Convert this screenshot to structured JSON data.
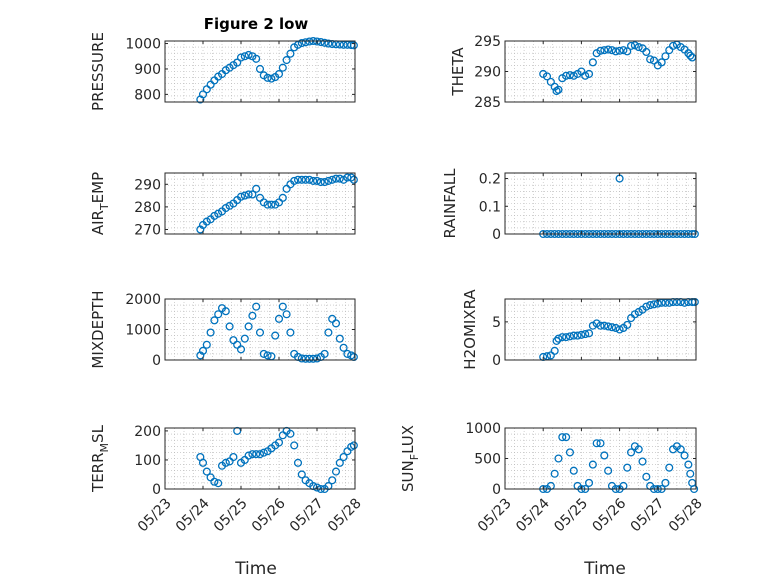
{
  "figure": {
    "title": "Figure 2 low",
    "xlabel": "Time"
  },
  "style": {
    "marker_color": "#0072bd",
    "axis_color": "#262626",
    "grid_color": "#b4b4b4"
  },
  "chart_data": [
    {
      "id": "pressure",
      "type": "scatter",
      "title": "Figure 2 low",
      "ylabel": "PRESSURE",
      "ylabel_sub": "",
      "xlim": [
        0,
        5
      ],
      "ylim": [
        770,
        1010
      ],
      "yticks": [
        800,
        900,
        1000
      ],
      "ytick_labels": [
        "800",
        "900",
        "1000"
      ],
      "xticks": [
        0,
        1,
        2,
        3,
        4,
        5
      ],
      "xtick_labels": [
        "05/23",
        "05/24",
        "05/25",
        "05/26",
        "05/27",
        "05/28"
      ],
      "show_xticklabels": false,
      "x": [
        0.93,
        1.0,
        1.1,
        1.2,
        1.3,
        1.4,
        1.5,
        1.6,
        1.7,
        1.8,
        1.9,
        2.0,
        2.1,
        2.2,
        2.3,
        2.4,
        2.5,
        2.6,
        2.7,
        2.8,
        2.9,
        3.0,
        3.1,
        3.2,
        3.3,
        3.4,
        3.5,
        3.6,
        3.7,
        3.8,
        3.9,
        4.0,
        4.1,
        4.2,
        4.3,
        4.4,
        4.5,
        4.6,
        4.7,
        4.8,
        4.9,
        4.97
      ],
      "y": [
        780,
        800,
        820,
        838,
        855,
        870,
        880,
        895,
        905,
        915,
        925,
        945,
        950,
        955,
        950,
        940,
        900,
        875,
        865,
        862,
        868,
        880,
        905,
        935,
        960,
        985,
        995,
        1002,
        1005,
        1008,
        1010,
        1008,
        1006,
        1003,
        1000,
        998,
        997,
        996,
        995,
        995,
        994,
        993
      ]
    },
    {
      "id": "theta",
      "type": "scatter",
      "title": "",
      "ylabel": "THETA",
      "ylabel_sub": "",
      "xlim": [
        0,
        5
      ],
      "ylim": [
        285,
        295
      ],
      "yticks": [
        285,
        290,
        295
      ],
      "ytick_labels": [
        "285",
        "290",
        "295"
      ],
      "xticks": [
        0,
        1,
        2,
        3,
        4,
        5
      ],
      "xtick_labels": [
        "05/23",
        "05/24",
        "05/25",
        "05/26",
        "05/27",
        "05/28"
      ],
      "show_xticklabels": false,
      "x": [
        1.0,
        1.1,
        1.2,
        1.3,
        1.35,
        1.4,
        1.5,
        1.6,
        1.7,
        1.8,
        1.9,
        2.0,
        2.1,
        2.2,
        2.3,
        2.4,
        2.5,
        2.6,
        2.7,
        2.8,
        2.9,
        3.0,
        3.1,
        3.2,
        3.3,
        3.4,
        3.5,
        3.6,
        3.7,
        3.8,
        3.9,
        4.0,
        4.1,
        4.2,
        4.3,
        4.4,
        4.5,
        4.6,
        4.7,
        4.8,
        4.85,
        4.9
      ],
      "y": [
        289.6,
        289.2,
        288.3,
        287.5,
        286.8,
        287.0,
        288.9,
        289.3,
        289.4,
        289.3,
        289.6,
        290.0,
        289.3,
        289.6,
        291.5,
        293.0,
        293.4,
        293.5,
        293.6,
        293.5,
        293.3,
        293.4,
        293.5,
        293.3,
        294.2,
        294.3,
        294.0,
        293.8,
        293.2,
        292.0,
        291.8,
        291.0,
        291.5,
        292.5,
        293.5,
        294.2,
        294.4,
        294.0,
        293.6,
        293.0,
        292.6,
        292.3
      ]
    },
    {
      "id": "air_temp",
      "type": "scatter",
      "title": "",
      "ylabel": "AIR",
      "ylabel_sub": "T",
      "ylabel_rest": "EMP",
      "xlim": [
        0,
        5
      ],
      "ylim": [
        268,
        295
      ],
      "yticks": [
        270,
        280,
        290
      ],
      "ytick_labels": [
        "270",
        "280",
        "290"
      ],
      "xticks": [
        0,
        1,
        2,
        3,
        4,
        5
      ],
      "xtick_labels": [
        "05/23",
        "05/24",
        "05/25",
        "05/26",
        "05/27",
        "05/28"
      ],
      "show_xticklabels": false,
      "x": [
        0.93,
        1.0,
        1.1,
        1.2,
        1.3,
        1.4,
        1.5,
        1.6,
        1.7,
        1.8,
        1.9,
        2.0,
        2.1,
        2.2,
        2.3,
        2.4,
        2.5,
        2.6,
        2.7,
        2.8,
        2.9,
        3.0,
        3.1,
        3.2,
        3.3,
        3.4,
        3.5,
        3.6,
        3.7,
        3.8,
        3.9,
        4.0,
        4.1,
        4.2,
        4.3,
        4.4,
        4.5,
        4.6,
        4.7,
        4.8,
        4.9,
        4.97
      ],
      "y": [
        270,
        272,
        273.5,
        274.5,
        276,
        277,
        278,
        279.5,
        280.5,
        281.5,
        283,
        284.5,
        285,
        285.5,
        285.5,
        288,
        284,
        282,
        281,
        281,
        281,
        282,
        284,
        288,
        290,
        291.5,
        292,
        292,
        292,
        292,
        291.5,
        291.5,
        291,
        291,
        291.5,
        292,
        292.5,
        292.5,
        292,
        293,
        293,
        292
      ]
    },
    {
      "id": "rainfall",
      "type": "scatter",
      "title": "",
      "ylabel": "RAINFALL",
      "ylabel_sub": "",
      "xlim": [
        0,
        5
      ],
      "ylim": [
        0,
        0.22
      ],
      "yticks": [
        0,
        0.1,
        0.2
      ],
      "ytick_labels": [
        "0",
        "0.1",
        "0.2"
      ],
      "xticks": [
        0,
        1,
        2,
        3,
        4,
        5
      ],
      "xtick_labels": [
        "05/23",
        "05/24",
        "05/25",
        "05/26",
        "05/27",
        "05/28"
      ],
      "show_xticklabels": false,
      "x": [
        1.0,
        1.1,
        1.2,
        1.3,
        1.4,
        1.5,
        1.6,
        1.7,
        1.8,
        1.9,
        2.0,
        2.1,
        2.2,
        2.3,
        2.4,
        2.5,
        2.6,
        2.7,
        2.8,
        2.9,
        3.0,
        3.1,
        3.2,
        3.3,
        3.4,
        3.5,
        3.6,
        3.7,
        3.8,
        3.9,
        4.0,
        4.1,
        4.2,
        4.3,
        4.4,
        4.5,
        4.6,
        4.7,
        4.8,
        4.9,
        4.97,
        3.0
      ],
      "y": [
        0,
        0,
        0,
        0,
        0,
        0,
        0,
        0,
        0,
        0,
        0,
        0,
        0,
        0,
        0,
        0,
        0,
        0,
        0,
        0,
        0,
        0,
        0,
        0,
        0,
        0,
        0,
        0,
        0,
        0,
        0,
        0,
        0,
        0,
        0,
        0,
        0,
        0,
        0,
        0,
        0,
        0.2
      ]
    },
    {
      "id": "mixdepth",
      "type": "scatter",
      "title": "",
      "ylabel": "MIXDEPTH",
      "ylabel_sub": "",
      "xlim": [
        0,
        5
      ],
      "ylim": [
        0,
        2000
      ],
      "yticks": [
        0,
        1000,
        2000
      ],
      "ytick_labels": [
        "0",
        "1000",
        "2000"
      ],
      "xticks": [
        0,
        1,
        2,
        3,
        4,
        5
      ],
      "xtick_labels": [
        "05/23",
        "05/24",
        "05/25",
        "05/26",
        "05/27",
        "05/28"
      ],
      "show_xticklabels": false,
      "x": [
        0.93,
        1.0,
        1.1,
        1.2,
        1.3,
        1.4,
        1.5,
        1.6,
        1.7,
        1.8,
        1.9,
        2.0,
        2.1,
        2.2,
        2.3,
        2.4,
        2.5,
        2.6,
        2.7,
        2.8,
        2.9,
        3.0,
        3.1,
        3.2,
        3.3,
        3.4,
        3.5,
        3.6,
        3.7,
        3.8,
        3.9,
        4.0,
        4.1,
        4.2,
        4.3,
        4.4,
        4.5,
        4.6,
        4.7,
        4.8,
        4.9,
        4.97
      ],
      "y": [
        150,
        300,
        500,
        900,
        1300,
        1500,
        1700,
        1600,
        1100,
        650,
        500,
        350,
        700,
        1100,
        1450,
        1750,
        900,
        200,
        150,
        120,
        800,
        1350,
        1750,
        1500,
        900,
        200,
        100,
        50,
        40,
        40,
        40,
        50,
        100,
        200,
        900,
        1350,
        1200,
        700,
        400,
        200,
        150,
        100
      ]
    },
    {
      "id": "h2omixra",
      "type": "scatter",
      "title": "",
      "ylabel": "H2OMIXRA",
      "ylabel_sub": "",
      "xlim": [
        0,
        5
      ],
      "ylim": [
        0,
        8
      ],
      "yticks": [
        0,
        5
      ],
      "ytick_labels": [
        "0",
        "5"
      ],
      "xticks": [
        0,
        1,
        2,
        3,
        4,
        5
      ],
      "xtick_labels": [
        "05/23",
        "05/24",
        "05/25",
        "05/26",
        "05/27",
        "05/28"
      ],
      "show_xticklabels": false,
      "x": [
        1.0,
        1.1,
        1.2,
        1.3,
        1.35,
        1.4,
        1.5,
        1.6,
        1.7,
        1.8,
        1.9,
        2.0,
        2.1,
        2.2,
        2.3,
        2.4,
        2.5,
        2.6,
        2.7,
        2.8,
        2.9,
        3.0,
        3.1,
        3.2,
        3.3,
        3.4,
        3.5,
        3.6,
        3.7,
        3.8,
        3.9,
        4.0,
        4.1,
        4.2,
        4.3,
        4.4,
        4.5,
        4.6,
        4.7,
        4.8,
        4.9,
        4.97
      ],
      "y": [
        0.4,
        0.5,
        0.6,
        1.2,
        2.5,
        2.8,
        3.0,
        3.0,
        3.1,
        3.2,
        3.2,
        3.3,
        3.4,
        3.5,
        4.5,
        4.8,
        4.5,
        4.5,
        4.4,
        4.3,
        4.2,
        4.0,
        4.2,
        4.6,
        5.5,
        6.0,
        6.3,
        6.6,
        7.0,
        7.2,
        7.3,
        7.4,
        7.5,
        7.5,
        7.5,
        7.6,
        7.6,
        7.6,
        7.5,
        7.6,
        7.6,
        7.6
      ]
    },
    {
      "id": "terr_msl",
      "type": "scatter",
      "title": "",
      "ylabel": "TERR",
      "ylabel_sub": "M",
      "ylabel_rest": "SL",
      "xlim": [
        0,
        5
      ],
      "ylim": [
        0,
        210
      ],
      "yticks": [
        0,
        100,
        200
      ],
      "ytick_labels": [
        "0",
        "100",
        "200"
      ],
      "xticks": [
        0,
        1,
        2,
        3,
        4,
        5
      ],
      "xtick_labels": [
        "05/23",
        "05/24",
        "05/25",
        "05/26",
        "05/27",
        "05/28"
      ],
      "show_xticklabels": true,
      "x": [
        0.93,
        1.0,
        1.1,
        1.2,
        1.3,
        1.4,
        1.5,
        1.6,
        1.7,
        1.8,
        1.9,
        2.0,
        2.1,
        2.2,
        2.3,
        2.4,
        2.5,
        2.6,
        2.7,
        2.8,
        2.9,
        3.0,
        3.1,
        3.2,
        3.3,
        3.4,
        3.5,
        3.6,
        3.7,
        3.8,
        3.9,
        4.0,
        4.1,
        4.2,
        4.3,
        4.4,
        4.5,
        4.6,
        4.7,
        4.8,
        4.9,
        4.97
      ],
      "y": [
        110,
        90,
        60,
        40,
        25,
        20,
        80,
        90,
        95,
        110,
        200,
        90,
        100,
        115,
        120,
        120,
        120,
        125,
        130,
        140,
        150,
        160,
        185,
        200,
        190,
        150,
        90,
        50,
        30,
        20,
        10,
        5,
        0,
        0,
        10,
        30,
        60,
        90,
        110,
        130,
        145,
        150
      ]
    },
    {
      "id": "sun_flux",
      "type": "scatter",
      "title": "",
      "ylabel": "SUN",
      "ylabel_sub": "F",
      "ylabel_rest": "LUX",
      "xlim": [
        0,
        5
      ],
      "ylim": [
        0,
        1000
      ],
      "yticks": [
        0,
        500,
        1000
      ],
      "ytick_labels": [
        "0",
        "500",
        "1000"
      ],
      "xticks": [
        0,
        1,
        2,
        3,
        4,
        5
      ],
      "xtick_labels": [
        "05/23",
        "05/24",
        "05/25",
        "05/26",
        "05/27",
        "05/28"
      ],
      "show_xticklabels": true,
      "x": [
        1.0,
        1.1,
        1.2,
        1.3,
        1.4,
        1.5,
        1.6,
        1.7,
        1.8,
        1.9,
        2.0,
        2.1,
        2.2,
        2.3,
        2.4,
        2.5,
        2.6,
        2.7,
        2.8,
        2.9,
        3.0,
        3.1,
        3.2,
        3.3,
        3.4,
        3.5,
        3.6,
        3.7,
        3.8,
        3.9,
        4.0,
        4.1,
        4.2,
        4.3,
        4.4,
        4.5,
        4.6,
        4.7,
        4.8,
        4.85,
        4.9,
        4.95
      ],
      "y": [
        0,
        0,
        50,
        250,
        500,
        850,
        850,
        600,
        300,
        50,
        0,
        0,
        100,
        400,
        750,
        750,
        550,
        300,
        50,
        0,
        0,
        50,
        350,
        600,
        700,
        650,
        450,
        200,
        50,
        0,
        0,
        0,
        100,
        350,
        650,
        700,
        650,
        550,
        400,
        250,
        100,
        0
      ]
    }
  ]
}
